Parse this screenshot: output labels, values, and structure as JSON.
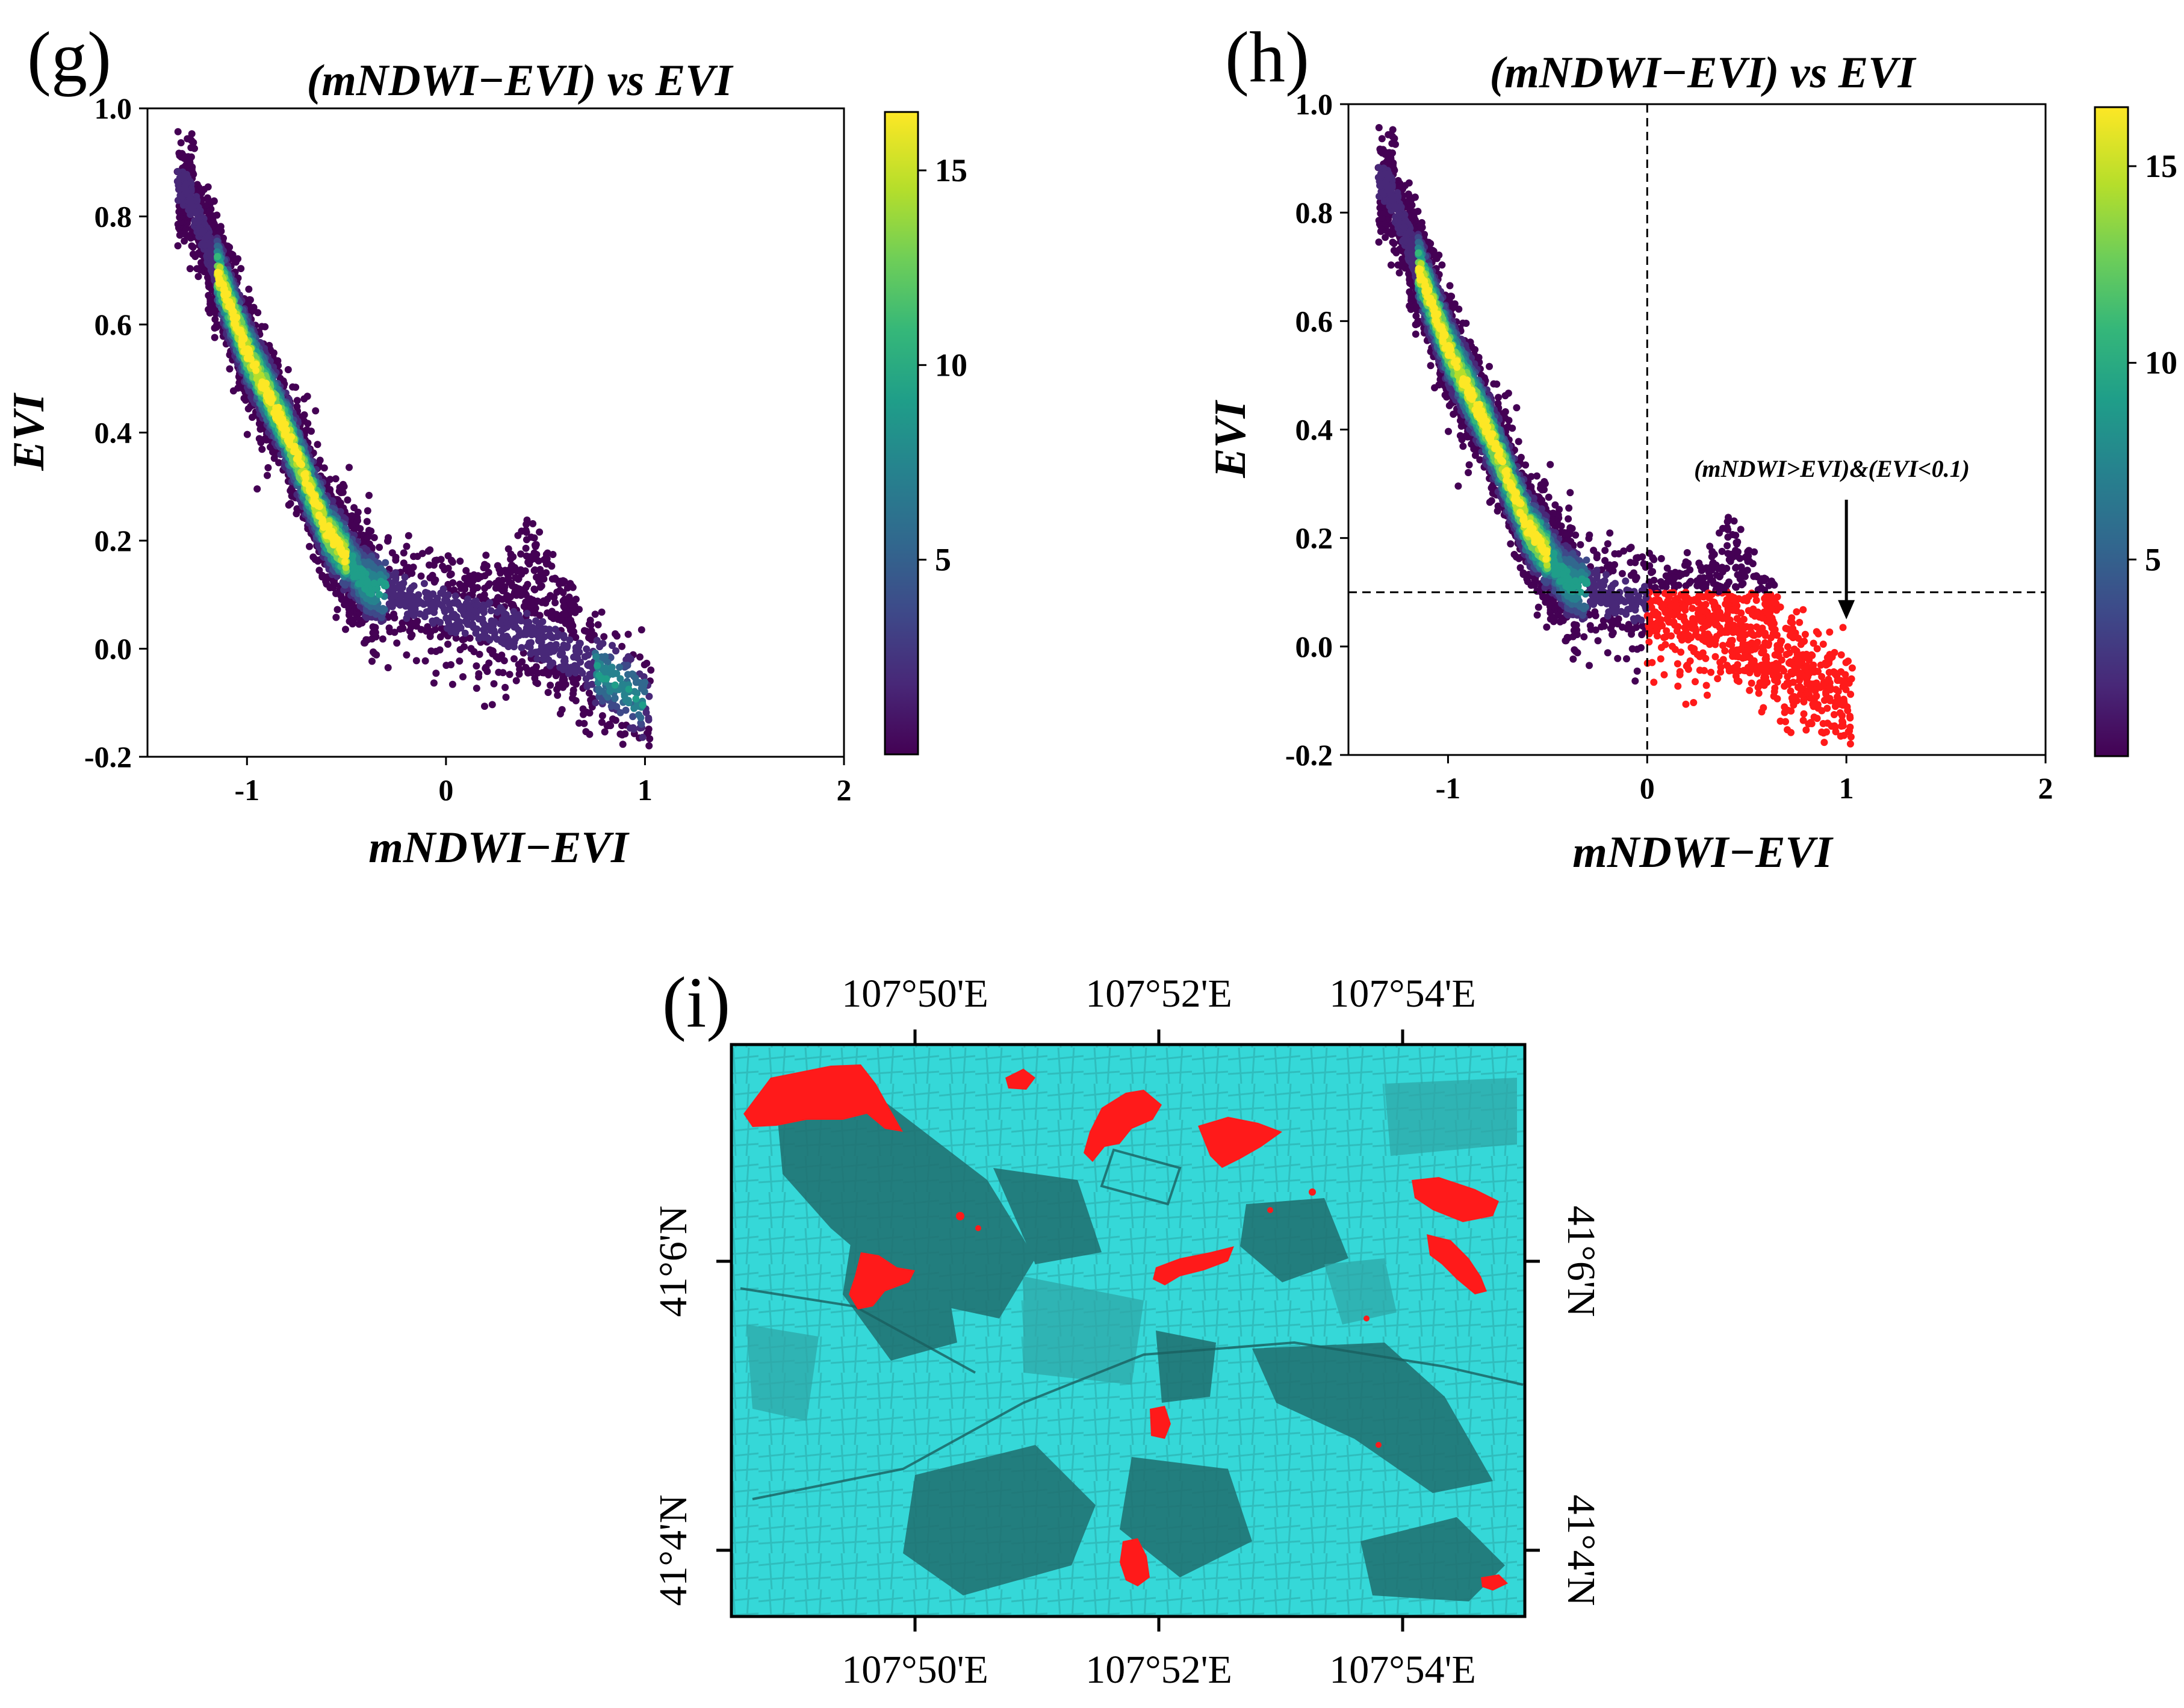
{
  "panels": {
    "g": {
      "letter": "(g)"
    },
    "h": {
      "letter": "(h)"
    },
    "i": {
      "letter": "(i)"
    }
  },
  "chart_data": [
    {
      "id": "g",
      "type": "scatter",
      "title": "(mNDWI−EVI) vs EVI",
      "xlabel": "mNDWI−EVI",
      "ylabel": "EVI",
      "xlim": [
        -1.5,
        2
      ],
      "ylim": [
        -0.2,
        1.0
      ],
      "xticks": [
        -1,
        0,
        1,
        2
      ],
      "xtick_labels": [
        "-1",
        "0",
        "1",
        "2"
      ],
      "yticks": [
        -0.2,
        0.0,
        0.2,
        0.4,
        0.6,
        0.8,
        1.0
      ],
      "ytick_labels": [
        "-0.2",
        "0.0",
        "0.2",
        "0.4",
        "0.6",
        "0.8",
        "1.0"
      ],
      "colormap": "viridis",
      "colorbar": {
        "range": [
          0,
          16.5
        ],
        "ticks": [
          5,
          10,
          15
        ],
        "tick_labels": [
          "5",
          "10",
          "15"
        ]
      },
      "density_ridge": [
        {
          "x": -1.3,
          "y": 0.85
        },
        {
          "x": -1.0,
          "y": 0.55
        },
        {
          "x": -0.8,
          "y": 0.4
        },
        {
          "x": -0.6,
          "y": 0.22
        },
        {
          "x": -0.4,
          "y": 0.12
        },
        {
          "x": 0.0,
          "y": 0.07
        },
        {
          "x": 0.4,
          "y": 0.03
        },
        {
          "x": 0.8,
          "y": -0.05
        },
        {
          "x": 1.0,
          "y": -0.1
        }
      ],
      "highlight_threshold": null
    },
    {
      "id": "h",
      "type": "scatter",
      "title": "(mNDWI−EVI) vs EVI",
      "xlabel": "mNDWI−EVI",
      "ylabel": "EVI",
      "xlim": [
        -1.5,
        2
      ],
      "ylim": [
        -0.2,
        1.0
      ],
      "xticks": [
        -1,
        0,
        1,
        2
      ],
      "xtick_labels": [
        "-1",
        "0",
        "1",
        "2"
      ],
      "yticks": [
        -0.2,
        0.0,
        0.2,
        0.4,
        0.6,
        0.8,
        1.0
      ],
      "ytick_labels": [
        "-0.2",
        "0.0",
        "0.2",
        "0.4",
        "0.6",
        "0.8",
        "1.0"
      ],
      "colormap": "viridis",
      "colorbar": {
        "range": [
          0,
          16.5
        ],
        "ticks": [
          5,
          10,
          15
        ],
        "tick_labels": [
          "5",
          "10",
          "15"
        ]
      },
      "density_ridge": [
        {
          "x": -1.3,
          "y": 0.85
        },
        {
          "x": -1.0,
          "y": 0.55
        },
        {
          "x": -0.8,
          "y": 0.4
        },
        {
          "x": -0.6,
          "y": 0.22
        },
        {
          "x": -0.4,
          "y": 0.12
        },
        {
          "x": 0.0,
          "y": 0.07
        },
        {
          "x": 0.4,
          "y": 0.03
        },
        {
          "x": 0.8,
          "y": -0.05
        },
        {
          "x": 1.0,
          "y": -0.1
        }
      ],
      "highlight_threshold": {
        "x_min": 0,
        "y_max": 0.1,
        "color": "#ff1a1a"
      },
      "reference_lines": {
        "vertical_x": 0,
        "horizontal_y": 0.1
      },
      "annotation": {
        "text": "(mNDWI>EVI)&(EVI<0.1)",
        "arrow_to": {
          "x": 1.0,
          "y": 0.05
        }
      }
    }
  ],
  "map": {
    "top_lon_labels": [
      "107°50'E",
      "107°52'E",
      "107°54'E"
    ],
    "bottom_lon_labels": [
      "107°50'E",
      "107°52'E",
      "107°54'E"
    ],
    "left_lat_labels": [
      "41°6'N",
      "41°4'N"
    ],
    "right_lat_labels": [
      "41°6'N",
      "41°4'N"
    ],
    "background_color": "#35d8d8",
    "water_color": "#ff1a1a"
  },
  "colors": {
    "viridis": [
      "#440154",
      "#482878",
      "#3e4989",
      "#31688e",
      "#26828e",
      "#1f9e89",
      "#35b779",
      "#6ece58",
      "#b5de2b",
      "#fde725"
    ],
    "highlight": "#ff1a1a",
    "map_cyan": "#35d8d8",
    "map_dark": "#1a6b6b"
  }
}
